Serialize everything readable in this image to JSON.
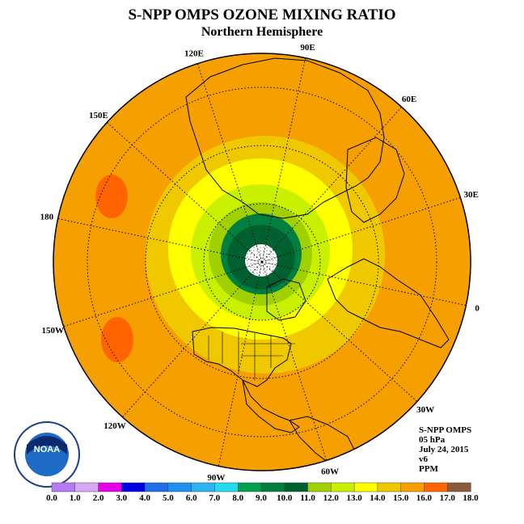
{
  "header": {
    "title": "S-NPP OMPS OZONE MIXING RATIO",
    "subtitle": "Northern Hemisphere"
  },
  "info": {
    "instrument": "S-NPP OMPS",
    "pressure": "05 hPa",
    "date": "July 24, 2015",
    "version": "v6",
    "units": "PPM"
  },
  "longitude_labels": [
    {
      "lon": 90,
      "text": "90E"
    },
    {
      "lon": 60,
      "text": "60E"
    },
    {
      "lon": 30,
      "text": "30E"
    },
    {
      "lon": 0,
      "text": "0"
    },
    {
      "lon": -30,
      "text": "30W"
    },
    {
      "lon": -60,
      "text": "60W"
    },
    {
      "lon": -90,
      "text": "90W"
    },
    {
      "lon": -120,
      "text": "120W"
    },
    {
      "lon": -150,
      "text": "150W"
    },
    {
      "lon": 180,
      "text": "180"
    },
    {
      "lon": 150,
      "text": "150E"
    },
    {
      "lon": 120,
      "text": "120E"
    }
  ],
  "colorbar": {
    "ticks": [
      "0.0",
      "1.0",
      "2.0",
      "3.0",
      "4.0",
      "5.0",
      "6.0",
      "7.0",
      "8.0",
      "9.0",
      "10.0",
      "11.0",
      "12.0",
      "13.0",
      "14.0",
      "15.0",
      "16.0",
      "17.0",
      "18.0"
    ],
    "colors": [
      "#b57bf0",
      "#d9a8f5",
      "#e600e6",
      "#0000e0",
      "#1e6eea",
      "#1f90f0",
      "#29b4f2",
      "#22dcee",
      "#00a050",
      "#008040",
      "#006030",
      "#a0d000",
      "#c8f000",
      "#ffff00",
      "#f0c800",
      "#f5a000",
      "#ff6400",
      "#f00000",
      "#8b5a3c"
    ]
  },
  "map": {
    "background_color": "#f5a000",
    "pole_value": "no data",
    "logo_text": "NOAA"
  }
}
